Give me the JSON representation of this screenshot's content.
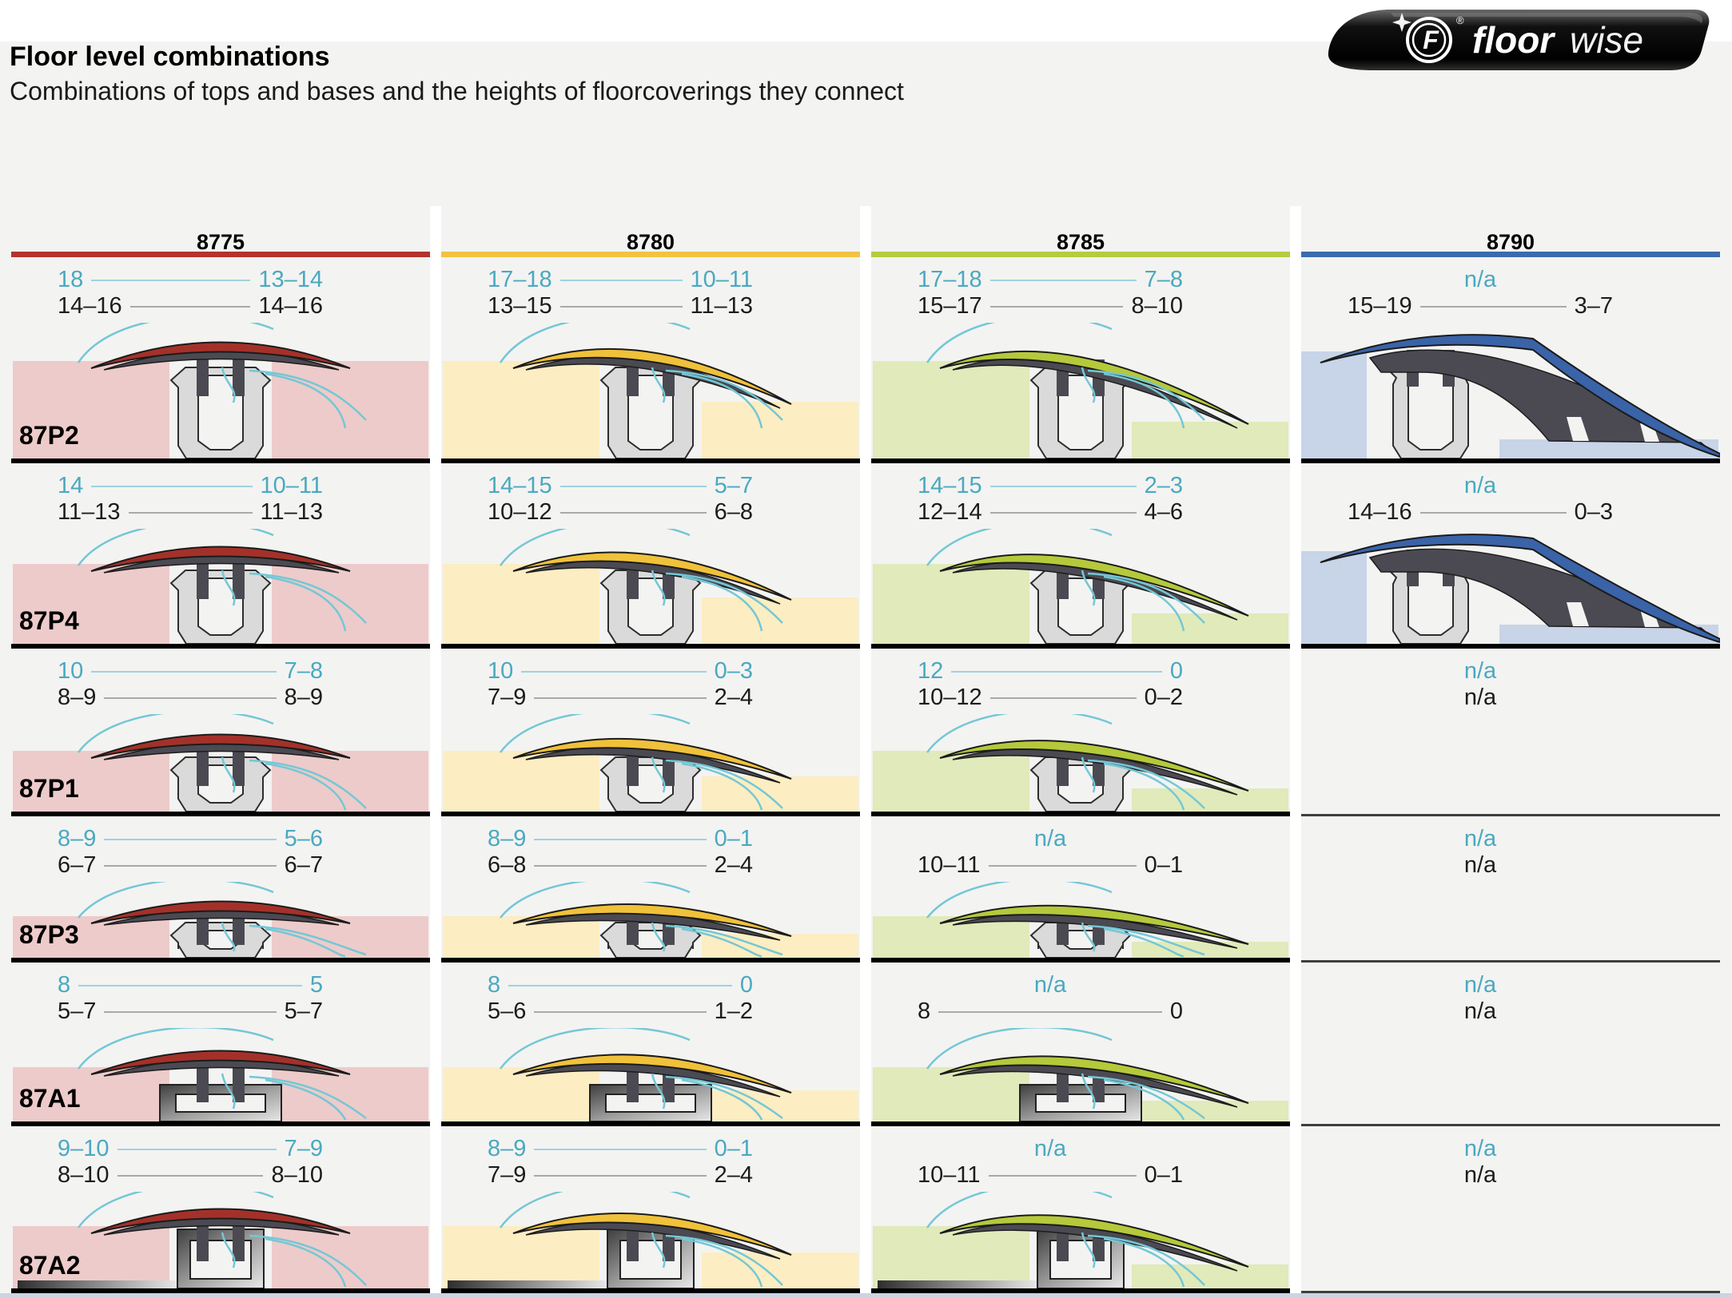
{
  "header": {
    "title": "Floor level combinations",
    "subtitle": "Combinations of tops and bases and the heights of floorcoverings they connect"
  },
  "logo": {
    "brand_bold": "floor",
    "brand_light": "wise",
    "emblem_letter": "F",
    "registered_mark": "®"
  },
  "na_label": "n/a",
  "colors": {
    "page_bg": "#f3f3f2",
    "teal_text": "#4aa9bf",
    "black_text": "#1c1c1c",
    "teal_line": "#9ed3de",
    "gray_line": "#a9a9a9",
    "profile_dark": "#4b4a52",
    "channel_gray": "#dadada",
    "sketch_teal": "#74c7d5"
  },
  "columns": [
    {
      "id": "8775",
      "accent": "#b5322d",
      "cap": "#a43129",
      "floor_block": "#edcbca"
    },
    {
      "id": "8780",
      "accent": "#f2c342",
      "cap": "#f0c13a",
      "floor_block": "#fcedc2"
    },
    {
      "id": "8785",
      "accent": "#b6cb3f",
      "cap": "#b5c93b",
      "floor_block": "#e1eaba"
    },
    {
      "id": "8790",
      "accent": "#3b6bad",
      "cap": "#3a63a8",
      "floor_block": "#c8d4e7"
    }
  ],
  "rows": [
    {
      "id": "87P2",
      "cells": [
        {
          "teal": [
            "18",
            "13–14"
          ],
          "black": [
            "14–16",
            "14–16"
          ]
        },
        {
          "teal": [
            "17–18",
            "10–11"
          ],
          "black": [
            "13–15",
            "11–13"
          ]
        },
        {
          "teal": [
            "17–18",
            "7–8"
          ],
          "black": [
            "15–17",
            "8–10"
          ]
        },
        {
          "teal": "n/a",
          "black": [
            "15–19",
            "3–7"
          ]
        }
      ]
    },
    {
      "id": "87P4",
      "cells": [
        {
          "teal": [
            "14",
            "10–11"
          ],
          "black": [
            "11–13",
            "11–13"
          ]
        },
        {
          "teal": [
            "14–15",
            "5–7"
          ],
          "black": [
            "10–12",
            "6–8"
          ]
        },
        {
          "teal": [
            "14–15",
            "2–3"
          ],
          "black": [
            "12–14",
            "4–6"
          ]
        },
        {
          "teal": "n/a",
          "black": [
            "14–16",
            "0–3"
          ]
        }
      ]
    },
    {
      "id": "87P1",
      "cells": [
        {
          "teal": [
            "10",
            "7–8"
          ],
          "black": [
            "8–9",
            "8–9"
          ]
        },
        {
          "teal": [
            "10",
            "0–3"
          ],
          "black": [
            "7–9",
            "2–4"
          ]
        },
        {
          "teal": [
            "12",
            "0"
          ],
          "black": [
            "10–12",
            "0–2"
          ]
        },
        {
          "teal": "n/a",
          "black": "n/a"
        }
      ]
    },
    {
      "id": "87P3",
      "cells": [
        {
          "teal": [
            "8–9",
            "5–6"
          ],
          "black": [
            "6–7",
            "6–7"
          ]
        },
        {
          "teal": [
            "8–9",
            "0–1"
          ],
          "black": [
            "6–8",
            "2–4"
          ]
        },
        {
          "teal": "n/a",
          "black": [
            "10–11",
            "0–1"
          ]
        },
        {
          "teal": "n/a",
          "black": "n/a"
        }
      ]
    },
    {
      "id": "87A1",
      "cells": [
        {
          "teal": [
            "8",
            "5"
          ],
          "black": [
            "5–7",
            "5–7"
          ]
        },
        {
          "teal": [
            "8",
            "0"
          ],
          "black": [
            "5–6",
            "1–2"
          ]
        },
        {
          "teal": "n/a",
          "black": [
            "8",
            "0"
          ]
        },
        {
          "teal": "n/a",
          "black": "n/a"
        }
      ]
    },
    {
      "id": "87A2",
      "cells": [
        {
          "teal": [
            "9–10",
            "7–9"
          ],
          "black": [
            "8–10",
            "8–10"
          ]
        },
        {
          "teal": [
            "8–9",
            "0–1"
          ],
          "black": [
            "7–9",
            "2–4"
          ]
        },
        {
          "teal": "n/a",
          "black": [
            "10–11",
            "0–1"
          ]
        },
        {
          "teal": "n/a",
          "black": "n/a"
        }
      ]
    }
  ]
}
